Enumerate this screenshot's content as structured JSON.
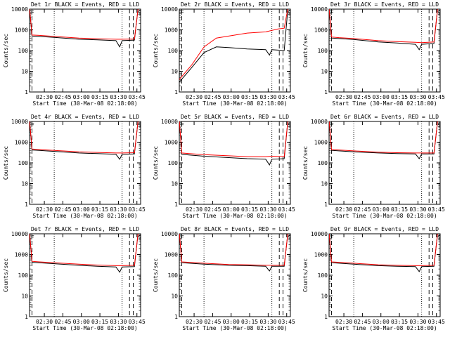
{
  "chart_data": [
    {
      "type": "line",
      "title": "Det 1r BLACK = Events, RED = LLD",
      "xlabel": "Start Time (30-Mar-08 02:18:00)",
      "ylabel": "Counts/sec",
      "yscale": "log",
      "ylim": [
        1,
        10000
      ],
      "xticks": [
        "02:30",
        "02:45",
        "03:00",
        "03:15",
        "03:30",
        "03:45"
      ],
      "yticks": [
        "1",
        "10",
        "100",
        "1000",
        "10000"
      ],
      "markers": [
        "F",
        "S"
      ],
      "series": [
        {
          "name": "Events",
          "color": "#000000",
          "points": [
            [
              0,
              12000
            ],
            [
              2,
              500
            ],
            [
              8,
              480
            ],
            [
              20,
              430
            ],
            [
              40,
              350
            ],
            [
              55,
              330
            ],
            [
              70,
              300
            ],
            [
              73,
              150
            ],
            [
              75,
              300
            ],
            [
              85,
              320
            ],
            [
              88,
              12000
            ]
          ]
        },
        {
          "name": "LLD",
          "color": "#ff0000",
          "points": [
            [
              0,
              12000
            ],
            [
              2,
              560
            ],
            [
              8,
              540
            ],
            [
              20,
              480
            ],
            [
              40,
              400
            ],
            [
              55,
              370
            ],
            [
              70,
              350
            ],
            [
              75,
              350
            ],
            [
              85,
              360
            ],
            [
              88,
              12000
            ]
          ]
        }
      ]
    },
    {
      "type": "line",
      "title": "Det 2r BLACK = Events, RED = LLD",
      "xlabel": "Start Time (30-Mar-08 02:18:00)",
      "ylabel": "Counts/sec",
      "yscale": "log",
      "ylim": [
        1,
        10000
      ],
      "xticks": [
        "02:30",
        "02:45",
        "03:00",
        "03:15",
        "03:30",
        "03:45"
      ],
      "yticks": [
        "1",
        "10",
        "100",
        "1000",
        "10000"
      ],
      "markers": [
        "F",
        "S"
      ],
      "series": [
        {
          "name": "Events",
          "color": "#000000",
          "points": [
            [
              0,
              3
            ],
            [
              10,
              15
            ],
            [
              20,
              80
            ],
            [
              30,
              150
            ],
            [
              40,
              140
            ],
            [
              55,
              120
            ],
            [
              70,
              110
            ],
            [
              73,
              60
            ],
            [
              75,
              110
            ],
            [
              85,
              100
            ],
            [
              88,
              12000
            ]
          ]
        },
        {
          "name": "LLD",
          "color": "#ff0000",
          "points": [
            [
              0,
              4
            ],
            [
              10,
              20
            ],
            [
              20,
              150
            ],
            [
              30,
              400
            ],
            [
              40,
              500
            ],
            [
              55,
              700
            ],
            [
              70,
              800
            ],
            [
              80,
              1100
            ],
            [
              85,
              1200
            ],
            [
              88,
              12000
            ]
          ]
        }
      ]
    },
    {
      "type": "line",
      "title": "Det 3r BLACK = Events, RED = LLD",
      "xlabel": "Start Time (30-Mar-08 02:18:00)",
      "ylabel": "Counts/sec",
      "yscale": "log",
      "ylim": [
        1,
        10000
      ],
      "xticks": [
        "02:30",
        "02:45",
        "03:00",
        "03:15",
        "03:30",
        "03:45"
      ],
      "yticks": [
        "1",
        "10",
        "100",
        "1000",
        "10000"
      ],
      "markers": [
        "F",
        "S"
      ],
      "series": [
        {
          "name": "Events",
          "color": "#000000",
          "points": [
            [
              0,
              12000
            ],
            [
              2,
              400
            ],
            [
              8,
              380
            ],
            [
              20,
              340
            ],
            [
              40,
              260
            ],
            [
              55,
              230
            ],
            [
              70,
              200
            ],
            [
              73,
              110
            ],
            [
              75,
              200
            ],
            [
              85,
              220
            ],
            [
              88,
              12000
            ]
          ]
        },
        {
          "name": "LLD",
          "color": "#ff0000",
          "points": [
            [
              0,
              12000
            ],
            [
              2,
              450
            ],
            [
              8,
              420
            ],
            [
              20,
              380
            ],
            [
              40,
              300
            ],
            [
              55,
              270
            ],
            [
              70,
              250
            ],
            [
              75,
              240
            ],
            [
              85,
              260
            ],
            [
              88,
              12000
            ]
          ]
        }
      ]
    },
    {
      "type": "line",
      "title": "Det 4r BLACK = Events, RED = LLD",
      "xlabel": "Start Time (30-Mar-08 02:18:00)",
      "ylabel": "Counts/sec",
      "yscale": "log",
      "ylim": [
        1,
        10000
      ],
      "xticks": [
        "02:30",
        "02:45",
        "03:00",
        "03:15",
        "03:30",
        "03:45"
      ],
      "yticks": [
        "1",
        "10",
        "100",
        "1000",
        "10000"
      ],
      "markers": [
        "F",
        "S"
      ],
      "series": [
        {
          "name": "Events",
          "color": "#000000",
          "points": [
            [
              0,
              12000
            ],
            [
              2,
              420
            ],
            [
              8,
              400
            ],
            [
              20,
              360
            ],
            [
              40,
              300
            ],
            [
              55,
              280
            ],
            [
              70,
              260
            ],
            [
              73,
              150
            ],
            [
              75,
              260
            ],
            [
              85,
              270
            ],
            [
              88,
              12000
            ]
          ]
        },
        {
          "name": "LLD",
          "color": "#ff0000",
          "points": [
            [
              0,
              12000
            ],
            [
              2,
              470
            ],
            [
              8,
              440
            ],
            [
              20,
              400
            ],
            [
              40,
              340
            ],
            [
              55,
              320
            ],
            [
              70,
              300
            ],
            [
              75,
              300
            ],
            [
              85,
              310
            ],
            [
              88,
              12000
            ]
          ]
        }
      ]
    },
    {
      "type": "line",
      "title": "Det 5r BLACK = Events, RED = LLD",
      "xlabel": "Start Time (30-Mar-08 02:18:00)",
      "ylabel": "Counts/sec",
      "yscale": "log",
      "ylim": [
        1,
        10000
      ],
      "xticks": [
        "02:30",
        "02:45",
        "03:00",
        "03:15",
        "03:30",
        "03:45"
      ],
      "yticks": [
        "1",
        "10",
        "100",
        "1000",
        "10000"
      ],
      "markers": [
        "F",
        "S"
      ],
      "series": [
        {
          "name": "Events",
          "color": "#000000",
          "points": [
            [
              0,
              12000
            ],
            [
              2,
              260
            ],
            [
              8,
              240
            ],
            [
              20,
              210
            ],
            [
              40,
              180
            ],
            [
              55,
              160
            ],
            [
              70,
              150
            ],
            [
              73,
              80
            ],
            [
              75,
              150
            ],
            [
              85,
              160
            ],
            [
              88,
              12000
            ]
          ]
        },
        {
          "name": "LLD",
          "color": "#ff0000",
          "points": [
            [
              0,
              12000
            ],
            [
              2,
              300
            ],
            [
              8,
              280
            ],
            [
              20,
              250
            ],
            [
              40,
              220
            ],
            [
              55,
              200
            ],
            [
              70,
              200
            ],
            [
              75,
              210
            ],
            [
              85,
              200
            ],
            [
              88,
              12000
            ]
          ]
        }
      ]
    },
    {
      "type": "line",
      "title": "Det 6r BLACK = Events, RED = LLD",
      "xlabel": "Start Time (30-Mar-08 02:18:00)",
      "ylabel": "Counts/sec",
      "yscale": "log",
      "ylim": [
        1,
        10000
      ],
      "xticks": [
        "02:30",
        "02:45",
        "03:00",
        "03:15",
        "03:30",
        "03:45"
      ],
      "yticks": [
        "1",
        "10",
        "100",
        "1000",
        "10000"
      ],
      "markers": [
        "F",
        "S"
      ],
      "series": [
        {
          "name": "Events",
          "color": "#000000",
          "points": [
            [
              0,
              12000
            ],
            [
              2,
              400
            ],
            [
              8,
              380
            ],
            [
              20,
              340
            ],
            [
              40,
              300
            ],
            [
              55,
              280
            ],
            [
              70,
              270
            ],
            [
              73,
              160
            ],
            [
              75,
              270
            ],
            [
              85,
              270
            ],
            [
              88,
              12000
            ]
          ]
        },
        {
          "name": "LLD",
          "color": "#ff0000",
          "points": [
            [
              0,
              12000
            ],
            [
              2,
              440
            ],
            [
              8,
              420
            ],
            [
              20,
              380
            ],
            [
              40,
              330
            ],
            [
              55,
              310
            ],
            [
              70,
              300
            ],
            [
              75,
              300
            ],
            [
              85,
              300
            ],
            [
              88,
              12000
            ]
          ]
        }
      ]
    },
    {
      "type": "line",
      "title": "Det 7r BLACK = Events, RED = LLD",
      "xlabel": "Start Time (30-Mar-08 02:18:00)",
      "ylabel": "Counts/sec",
      "yscale": "log",
      "ylim": [
        1,
        10000
      ],
      "xticks": [
        "02:30",
        "02:45",
        "03:00",
        "03:15",
        "03:30",
        "03:45"
      ],
      "yticks": [
        "1",
        "10",
        "100",
        "1000",
        "10000"
      ],
      "markers": [
        "F",
        "S"
      ],
      "series": [
        {
          "name": "Events",
          "color": "#000000",
          "points": [
            [
              0,
              12000
            ],
            [
              2,
              420
            ],
            [
              8,
              400
            ],
            [
              20,
              360
            ],
            [
              40,
              300
            ],
            [
              55,
              270
            ],
            [
              70,
              250
            ],
            [
              73,
              140
            ],
            [
              75,
              250
            ],
            [
              85,
              260
            ],
            [
              88,
              12000
            ]
          ]
        },
        {
          "name": "LLD",
          "color": "#ff0000",
          "points": [
            [
              0,
              12000
            ],
            [
              2,
              470
            ],
            [
              8,
              440
            ],
            [
              20,
              400
            ],
            [
              40,
              340
            ],
            [
              55,
              310
            ],
            [
              70,
              290
            ],
            [
              75,
              290
            ],
            [
              85,
              300
            ],
            [
              88,
              12000
            ]
          ]
        }
      ]
    },
    {
      "type": "line",
      "title": "Det 8r BLACK = Events, RED = LLD",
      "xlabel": "Start Time (30-Mar-08 02:18:00)",
      "ylabel": "Counts/sec",
      "yscale": "log",
      "ylim": [
        1,
        10000
      ],
      "xticks": [
        "02:30",
        "02:45",
        "03:00",
        "03:15",
        "03:30",
        "03:45"
      ],
      "yticks": [
        "1",
        "10",
        "100",
        "1000",
        "10000"
      ],
      "markers": [
        "F",
        "S"
      ],
      "series": [
        {
          "name": "Events",
          "color": "#000000",
          "points": [
            [
              0,
              12000
            ],
            [
              2,
              400
            ],
            [
              8,
              380
            ],
            [
              20,
              340
            ],
            [
              40,
              300
            ],
            [
              55,
              290
            ],
            [
              70,
              270
            ],
            [
              73,
              160
            ],
            [
              75,
              270
            ],
            [
              85,
              270
            ],
            [
              88,
              12000
            ]
          ]
        },
        {
          "name": "LLD",
          "color": "#ff0000",
          "points": [
            [
              0,
              12000
            ],
            [
              2,
              440
            ],
            [
              8,
              420
            ],
            [
              20,
              380
            ],
            [
              40,
              330
            ],
            [
              55,
              320
            ],
            [
              70,
              300
            ],
            [
              75,
              300
            ],
            [
              85,
              300
            ],
            [
              88,
              12000
            ]
          ]
        }
      ]
    },
    {
      "type": "line",
      "title": "Det 9r BLACK = Events, RED = LLD",
      "xlabel": "Start Time (30-Mar-08 02:18:00)",
      "ylabel": "Counts/sec",
      "yscale": "log",
      "ylim": [
        1,
        10000
      ],
      "xticks": [
        "02:30",
        "02:45",
        "03:00",
        "03:15",
        "03:30",
        "03:45"
      ],
      "yticks": [
        "1",
        "10",
        "100",
        "1000",
        "10000"
      ],
      "markers": [
        "F",
        "S"
      ],
      "series": [
        {
          "name": "Events",
          "color": "#000000",
          "points": [
            [
              0,
              12000
            ],
            [
              2,
              400
            ],
            [
              8,
              380
            ],
            [
              20,
              340
            ],
            [
              40,
              290
            ],
            [
              55,
              270
            ],
            [
              70,
              260
            ],
            [
              73,
              150
            ],
            [
              75,
              260
            ],
            [
              85,
              270
            ],
            [
              88,
              12000
            ]
          ]
        },
        {
          "name": "LLD",
          "color": "#ff0000",
          "points": [
            [
              0,
              12000
            ],
            [
              2,
              440
            ],
            [
              8,
              420
            ],
            [
              20,
              380
            ],
            [
              40,
              320
            ],
            [
              55,
              300
            ],
            [
              70,
              290
            ],
            [
              75,
              290
            ],
            [
              85,
              300
            ],
            [
              88,
              12000
            ]
          ]
        }
      ]
    }
  ]
}
